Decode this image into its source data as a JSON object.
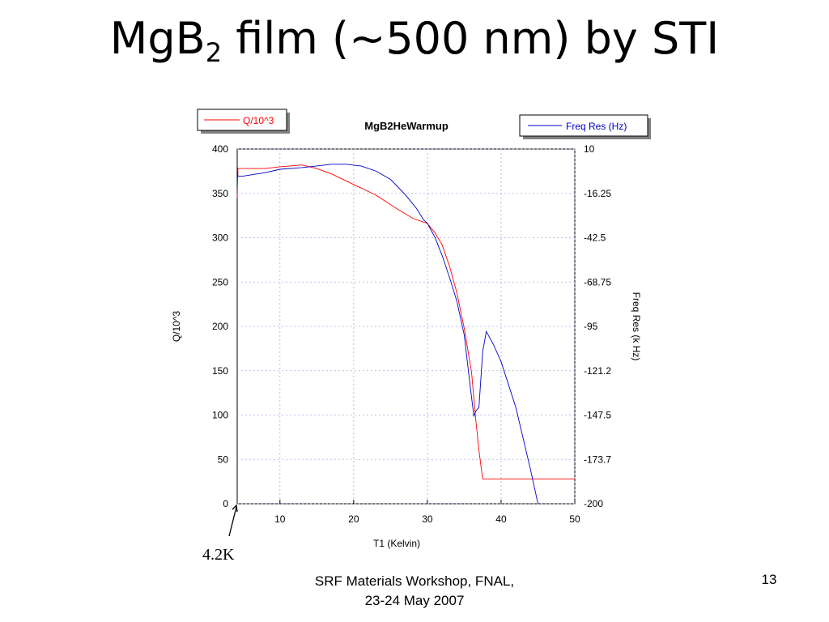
{
  "slide": {
    "title_main": "MgB",
    "title_sub": "2",
    "title_rest": " film (~500 nm) by STI",
    "annotation": "4.2K",
    "footer_line1": "SRF Materials Workshop, FNAL,",
    "footer_line2": "23-24 May 2007",
    "page_number": "13"
  },
  "chart_data": {
    "type": "line",
    "title": "MgB2HeWarmup",
    "xlabel": "T1 (Kelvin)",
    "ylabel": "Q/10^3",
    "y2label": "Freq Res (k Hz)",
    "xlim": [
      4.2,
      50
    ],
    "ylim": [
      0,
      400
    ],
    "y2lim": [
      -200,
      10
    ],
    "x_ticks": [
      "10",
      "20",
      "30",
      "40",
      "50"
    ],
    "y_ticks": [
      "0",
      "50",
      "100",
      "150",
      "200",
      "250",
      "300",
      "350",
      "400"
    ],
    "y2_ticks": [
      "-200",
      "-173.7",
      "-147.5",
      "-121.2",
      "-95",
      "-68.75",
      "-42.5",
      "-16.25",
      "10"
    ],
    "grid": true,
    "legend_left": {
      "label": "Q/10^3",
      "color": "#ff0000"
    },
    "legend_right": {
      "label": "Freq Res (Hz)",
      "color": "#0000cc"
    },
    "series": [
      {
        "name": "Q/10^3",
        "axis": "left",
        "color": "#ff0000",
        "x": [
          4.2,
          4.3,
          5,
          8,
          10,
          13,
          15,
          17,
          20,
          23,
          26,
          28,
          30,
          31,
          32,
          33,
          34,
          35,
          36,
          36.5,
          37,
          37.5,
          40,
          45,
          50
        ],
        "y": [
          345,
          378,
          378,
          378,
          380,
          382,
          378,
          372,
          360,
          348,
          332,
          322,
          316,
          306,
          292,
          268,
          238,
          198,
          148,
          100,
          60,
          28,
          28,
          28,
          28
        ]
      },
      {
        "name": "Freq Res (Hz)",
        "axis": "right",
        "color": "#0000cc",
        "x": [
          4.2,
          4.3,
          5,
          8,
          10,
          13,
          15,
          17,
          19,
          21,
          23,
          25,
          27,
          28.5,
          29.5,
          30,
          31,
          32,
          33,
          34,
          35,
          35.8,
          36.3,
          36.6,
          37,
          37.5,
          38,
          39,
          40,
          42,
          44,
          45
        ],
        "y": [
          -2,
          -6,
          -6,
          -4,
          -2,
          -1,
          0,
          1,
          1,
          0,
          -3,
          -8,
          -17,
          -25,
          -32,
          -34,
          -42,
          -53,
          -66,
          -80,
          -100,
          -130,
          -148,
          -145,
          -143,
          -110,
          -98,
          -106,
          -116,
          -143,
          -180,
          -200
        ]
      }
    ]
  }
}
